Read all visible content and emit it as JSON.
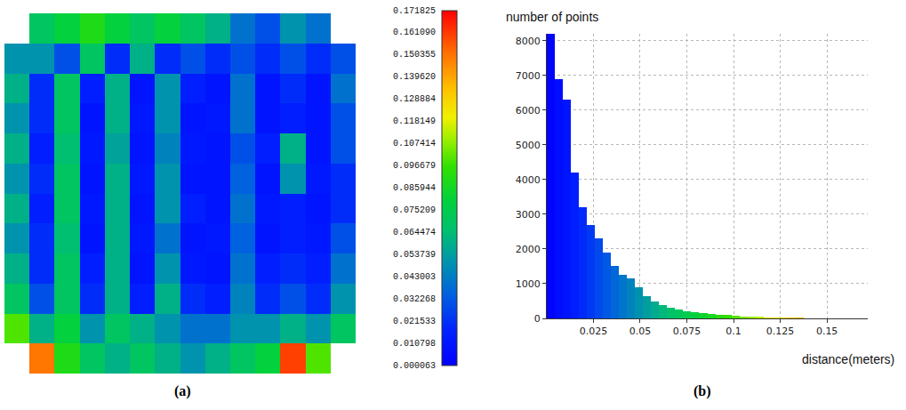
{
  "chart_data": [
    {
      "type": "heatmap",
      "panel": "(a)",
      "tick_labels": false,
      "z": [
        [
          null,
          0.07,
          0.08,
          0.09,
          0.08,
          0.07,
          0.08,
          0.07,
          0.06,
          0.04,
          0.03,
          0.05,
          0.04,
          null
        ],
        [
          0.05,
          0.05,
          0.03,
          0.07,
          0.02,
          0.06,
          0.02,
          0.03,
          0.02,
          0.03,
          0.02,
          0.03,
          0.02,
          0.03
        ],
        [
          0.06,
          0.02,
          0.07,
          0.015,
          0.06,
          0.01,
          0.05,
          0.015,
          0.01,
          0.04,
          0.01,
          0.02,
          0.01,
          0.04
        ],
        [
          0.05,
          0.02,
          0.07,
          0.01,
          0.06,
          0.012,
          0.05,
          0.01,
          0.012,
          0.04,
          0.01,
          0.015,
          0.01,
          0.03
        ],
        [
          0.06,
          0.015,
          0.065,
          0.012,
          0.055,
          0.01,
          0.045,
          0.012,
          0.01,
          0.03,
          0.015,
          0.06,
          0.01,
          0.03
        ],
        [
          0.05,
          0.02,
          0.07,
          0.01,
          0.06,
          0.012,
          0.05,
          0.01,
          0.01,
          0.035,
          0.01,
          0.05,
          0.012,
          0.02
        ],
        [
          0.06,
          0.015,
          0.07,
          0.012,
          0.06,
          0.01,
          0.05,
          0.015,
          0.01,
          0.04,
          0.012,
          0.015,
          0.01,
          0.02
        ],
        [
          0.05,
          0.02,
          0.065,
          0.01,
          0.06,
          0.012,
          0.04,
          0.01,
          0.012,
          0.035,
          0.01,
          0.015,
          0.012,
          0.03
        ],
        [
          0.06,
          0.02,
          0.07,
          0.015,
          0.06,
          0.01,
          0.05,
          0.012,
          0.01,
          0.04,
          0.015,
          0.02,
          0.015,
          0.04
        ],
        [
          0.07,
          0.03,
          0.07,
          0.02,
          0.06,
          0.015,
          0.06,
          0.02,
          0.015,
          0.045,
          0.02,
          0.03,
          0.02,
          0.05
        ],
        [
          0.1,
          0.06,
          0.08,
          0.05,
          0.07,
          0.06,
          0.05,
          0.04,
          0.04,
          0.05,
          0.05,
          0.06,
          0.05,
          0.07
        ],
        [
          null,
          0.15,
          0.09,
          0.07,
          0.06,
          0.07,
          0.06,
          0.05,
          0.06,
          0.07,
          0.08,
          0.16,
          0.1,
          null
        ]
      ],
      "colorbar": {
        "range": [
          6.3e-05,
          0.171825
        ],
        "ticks": [
          {
            "value": 6.3e-05,
            "label": "0.000063"
          },
          0.010798,
          0.021533,
          0.032268,
          0.043003,
          0.053739,
          0.064474,
          0.075209,
          0.085944,
          0.096679,
          0.107414,
          0.118149,
          0.128884,
          {
            "value": 0.13962,
            "label": "0.139620"
          },
          0.150355,
          {
            "value": 0.16109,
            "label": "0.161090"
          },
          0.171825
        ]
      }
    },
    {
      "type": "histogram",
      "panel": "(b)",
      "y_label": "number of points",
      "x_label": "distance(meters)",
      "bins": [
        6.3e-05,
        0.004357,
        0.008651,
        0.012945,
        0.017239,
        0.021533,
        0.025827,
        0.030121,
        0.034415,
        0.038709,
        0.043003,
        0.047297,
        0.051591,
        0.055885,
        0.060179,
        0.064474,
        0.068768,
        0.073062,
        0.077356,
        0.08165,
        0.085944,
        0.090238,
        0.094532,
        0.098826,
        0.10312,
        0.107414,
        0.111708,
        0.116002,
        0.120296,
        0.12459,
        0.128884,
        0.133178,
        0.137472,
        0.141766,
        0.146061,
        0.150355,
        0.154649,
        0.158943,
        0.163237,
        0.167531,
        0.171825
      ],
      "counts": [
        8300,
        6900,
        6300,
        4200,
        3200,
        2700,
        2300,
        1900,
        1500,
        1250,
        1150,
        900,
        650,
        480,
        380,
        300,
        250,
        210,
        180,
        150,
        130,
        110,
        90,
        75,
        60,
        50,
        42,
        35,
        28,
        22,
        18,
        14,
        11,
        9,
        7,
        5,
        4,
        3,
        2,
        1
      ],
      "xlim": [
        6.3e-05,
        0.171825
      ],
      "xticks": [
        0.025,
        0.05,
        0.075,
        0.1,
        0.125,
        0.15
      ],
      "ylim": [
        0,
        8200
      ],
      "yticks": [
        0,
        1000,
        2000,
        3000,
        4000,
        5000,
        6000,
        7000,
        8000
      ],
      "grid": true
    }
  ]
}
